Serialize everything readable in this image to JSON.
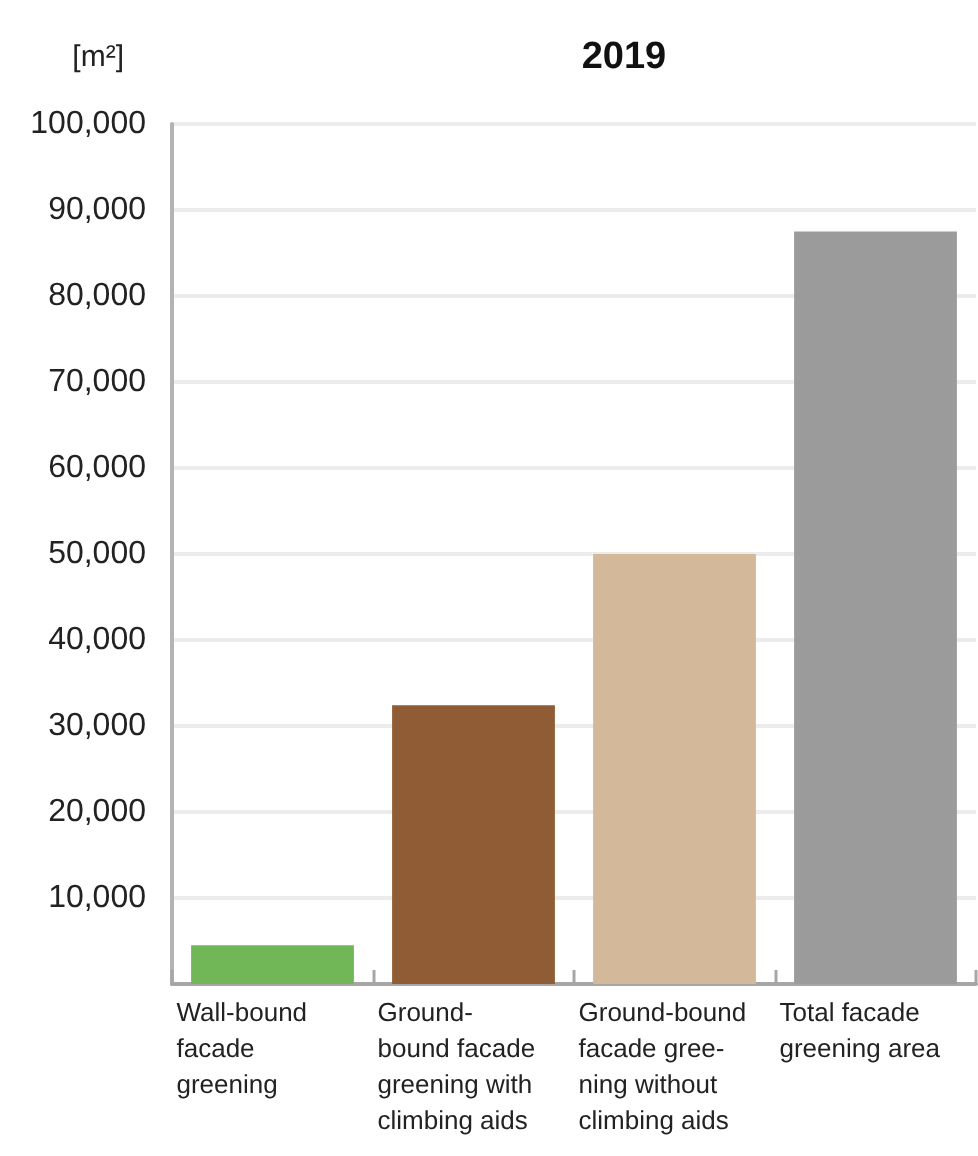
{
  "chart_data": {
    "type": "bar",
    "title": "2019",
    "ylabel": "[m²]",
    "categories": [
      "Wall-bound\nfacade\ngreening",
      "Ground-\nbound facade\ngreening with\nclimbing aids",
      "Ground-bound\nfacade gree-\nning without\nclimbing aids",
      "Total facade\ngreening area"
    ],
    "values": [
      4500,
      32400,
      50000,
      87500
    ],
    "colors": [
      "#72b757",
      "#8f5c35",
      "#d4b89a",
      "#9b9b9b"
    ],
    "ylim": [
      0,
      100000
    ],
    "yticks": [
      {
        "value": 10000,
        "label": "10,000"
      },
      {
        "value": 20000,
        "label": "20,000"
      },
      {
        "value": 30000,
        "label": "30,000"
      },
      {
        "value": 40000,
        "label": "40,000"
      },
      {
        "value": 50000,
        "label": "50,000"
      },
      {
        "value": 60000,
        "label": "60,000"
      },
      {
        "value": 70000,
        "label": "70,000"
      },
      {
        "value": 80000,
        "label": "80,000"
      },
      {
        "value": 90000,
        "label": "90,000"
      },
      {
        "value": 100000,
        "label": "100,000"
      }
    ],
    "grid": "y"
  }
}
